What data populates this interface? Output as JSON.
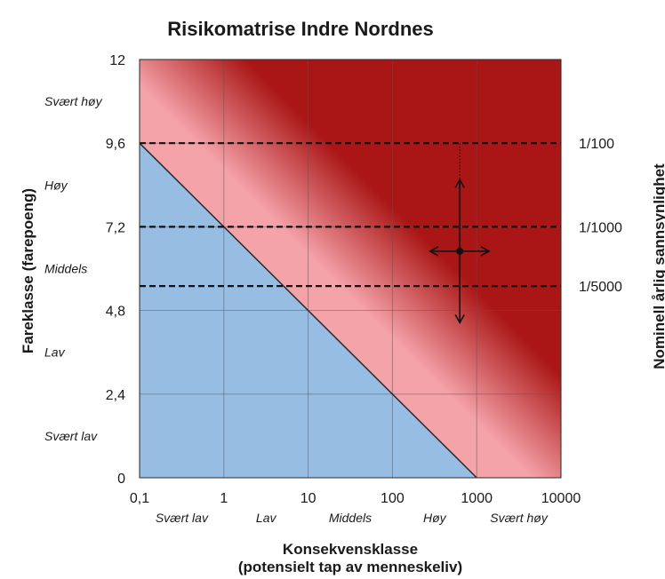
{
  "chart_data": {
    "type": "heatmap",
    "title": "Risikomatrise Indre Nordnes",
    "xlabel_line1": "Konsekvensklasse",
    "xlabel_line2": "(potensielt tap av menneskeliv)",
    "ylabel": "Fareklasse (farepoeng)",
    "y2label": "Nominell årlig sannsynlighet",
    "x_scale": "log",
    "x_ticks": [
      {
        "value": 0.1,
        "label": "0,1"
      },
      {
        "value": 1,
        "label": "1"
      },
      {
        "value": 10,
        "label": "10"
      },
      {
        "value": 100,
        "label": "100"
      },
      {
        "value": 1000,
        "label": "1000"
      },
      {
        "value": 10000,
        "label": "10000"
      }
    ],
    "x_categories": [
      "Svært lav",
      "Lav",
      "Middels",
      "Høy",
      "Svært høy"
    ],
    "y_ticks": [
      {
        "value": 0,
        "label": "0"
      },
      {
        "value": 2.4,
        "label": "2,4"
      },
      {
        "value": 4.8,
        "label": "4,8"
      },
      {
        "value": 7.2,
        "label": "7,2"
      },
      {
        "value": 9.6,
        "label": "9,6"
      },
      {
        "value": 12,
        "label": "12"
      }
    ],
    "y_categories": [
      "Svært lav",
      "Lav",
      "Middels",
      "Høy",
      "Svært høy"
    ],
    "xlim": [
      0.1,
      10000
    ],
    "ylim": [
      0,
      12
    ],
    "grid": true,
    "zones": {
      "low_color": "#98bde3",
      "medium_color": "#f4a3a9",
      "high_color": "#aa1515",
      "boundary_line": [
        [
          0.1,
          9.6
        ],
        [
          1000,
          0
        ]
      ]
    },
    "probability_lines": [
      {
        "y": 9.6,
        "label": "1/100"
      },
      {
        "y": 7.2,
        "label": "1/1000"
      },
      {
        "y": 5.5,
        "label": "1/5000"
      }
    ],
    "assessment_point": {
      "x": 630,
      "y": 6.5,
      "y_range": [
        4.45,
        8.55
      ],
      "x_range": [
        280,
        1400
      ],
      "dotted_extent_to_y": 9.6
    }
  }
}
